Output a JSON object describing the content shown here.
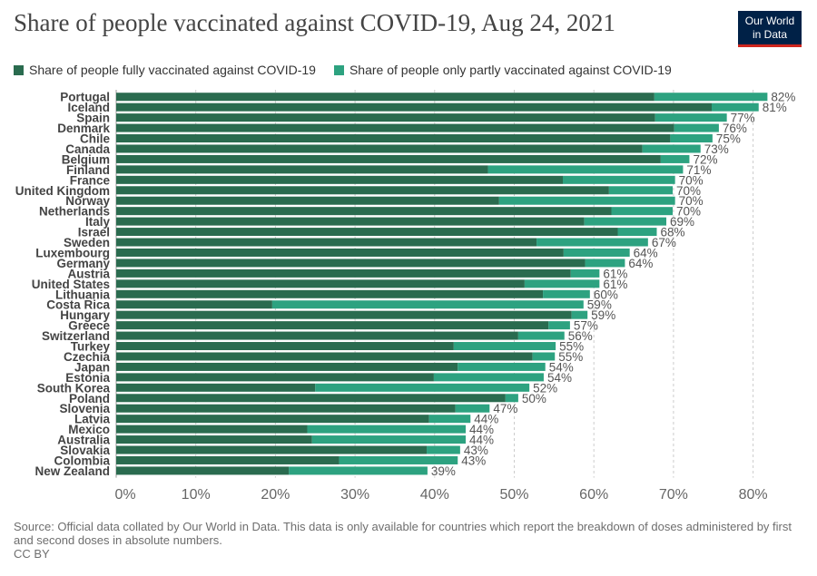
{
  "header": {
    "title": "Share of people vaccinated against COVID-19, Aug 24, 2021",
    "logo_line1": "Our World",
    "logo_line2": "in Data"
  },
  "colors": {
    "fully": "#2a6b4f",
    "partly": "#2da280",
    "grid": "#cccccc",
    "label": "#444444"
  },
  "footer": {
    "source": "Source: Official data collated by Our World in Data. This data is only available for countries which report the breakdown of doses administered by first and second doses in absolute numbers.",
    "license": "CC BY"
  },
  "chart_data": {
    "type": "bar",
    "orientation": "horizontal",
    "stacked": true,
    "title": "Share of people vaccinated against COVID-19, Aug 24, 2021",
    "xlim": [
      0,
      80
    ],
    "x_ticks": [
      "0%",
      "10%",
      "20%",
      "30%",
      "40%",
      "50%",
      "60%",
      "70%",
      "80%"
    ],
    "grid": true,
    "legend_position": "top-left",
    "categories": [
      "Portugal",
      "Iceland",
      "Spain",
      "Denmark",
      "Chile",
      "Canada",
      "Belgium",
      "Finland",
      "France",
      "United Kingdom",
      "Norway",
      "Netherlands",
      "Italy",
      "Israel",
      "Sweden",
      "Luxembourg",
      "Germany",
      "Austria",
      "United States",
      "Lithuania",
      "Costa Rica",
      "Hungary",
      "Greece",
      "Switzerland",
      "Turkey",
      "Czechia",
      "Japan",
      "Estonia",
      "South Korea",
      "Poland",
      "Slovenia",
      "Latvia",
      "Mexico",
      "Australia",
      "Slovakia",
      "Colombia",
      "New Zealand"
    ],
    "series": [
      {
        "name": "Share of people fully vaccinated against COVID-19",
        "values": [
          67.6,
          74.8,
          67.7,
          70.1,
          69.6,
          66.1,
          68.4,
          46.7,
          56.1,
          61.9,
          48.1,
          62.2,
          58.8,
          63.0,
          52.8,
          56.2,
          58.9,
          57.1,
          51.3,
          53.6,
          19.6,
          57.2,
          54.3,
          50.5,
          42.4,
          52.3,
          42.9,
          39.9,
          25.0,
          48.9,
          42.6,
          39.3,
          24.0,
          24.6,
          39.0,
          28.0,
          21.7
        ]
      },
      {
        "name": "Share of people only partly vaccinated against COVID-19",
        "values": [
          14.2,
          5.9,
          9.0,
          5.6,
          5.3,
          7.3,
          3.6,
          24.5,
          14.1,
          8.0,
          22.1,
          7.7,
          10.3,
          4.9,
          14.0,
          8.3,
          5.0,
          3.6,
          9.4,
          5.9,
          39.1,
          2.0,
          2.7,
          5.8,
          12.8,
          2.8,
          11.0,
          13.8,
          26.9,
          1.6,
          4.3,
          5.2,
          19.9,
          19.3,
          4.2,
          14.9,
          17.4
        ]
      }
    ],
    "total_labels": [
      "82%",
      "81%",
      "77%",
      "76%",
      "75%",
      "73%",
      "72%",
      "71%",
      "70%",
      "70%",
      "70%",
      "70%",
      "69%",
      "68%",
      "67%",
      "64%",
      "64%",
      "61%",
      "61%",
      "60%",
      "59%",
      "59%",
      "57%",
      "56%",
      "55%",
      "55%",
      "54%",
      "54%",
      "52%",
      "50%",
      "47%",
      "44%",
      "44%",
      "44%",
      "43%",
      "43%",
      "39%"
    ]
  }
}
